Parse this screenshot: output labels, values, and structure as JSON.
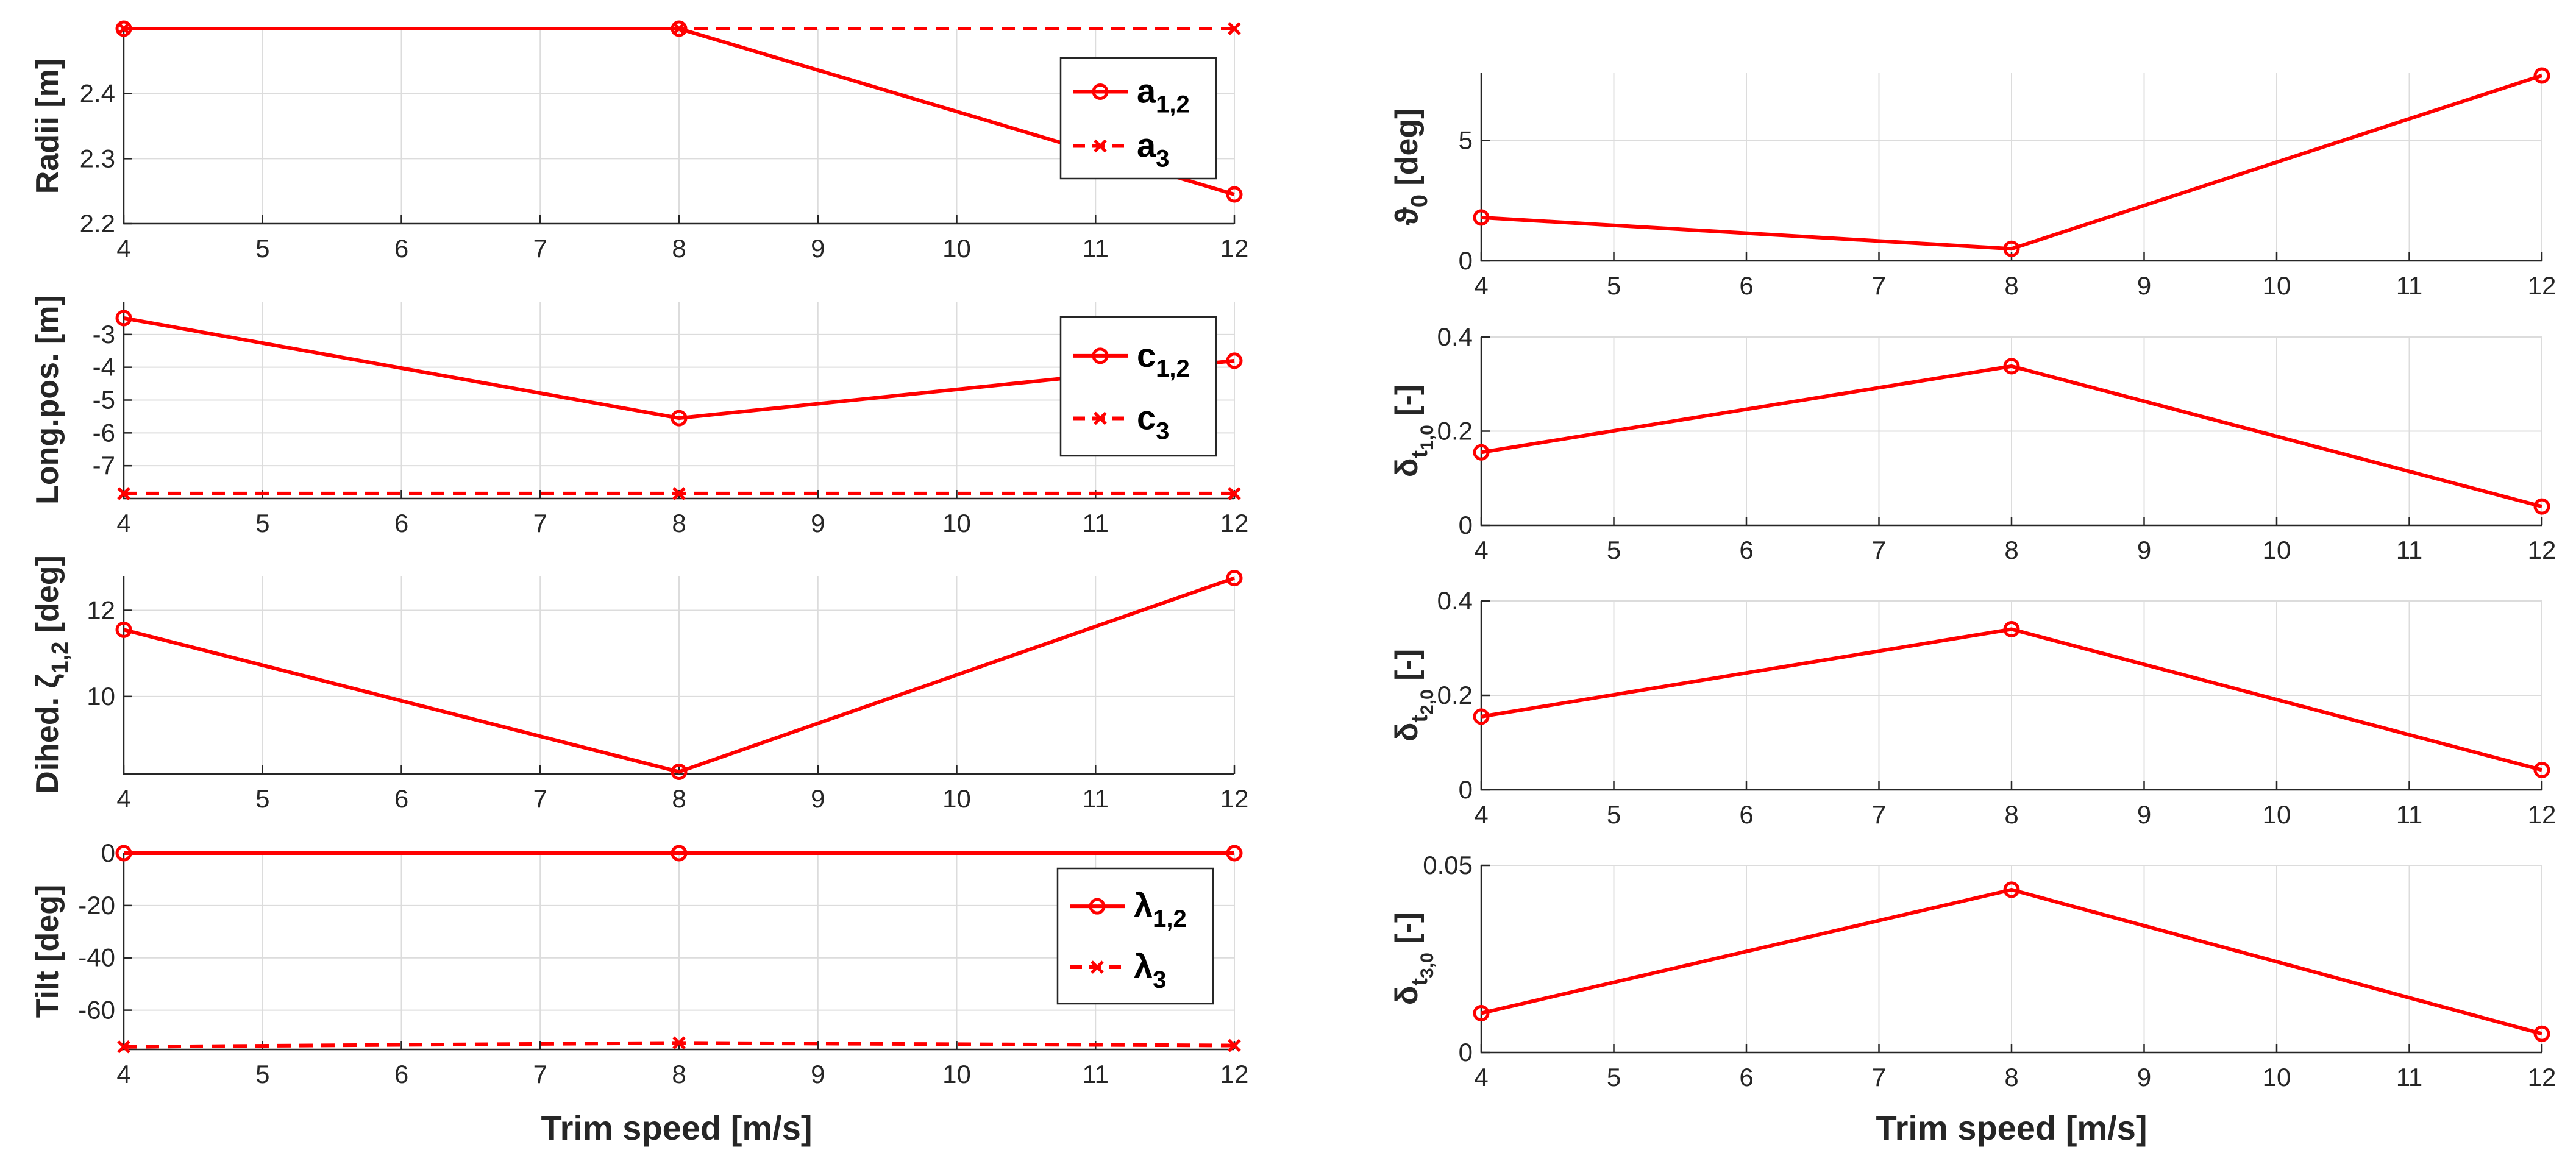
{
  "figure": {
    "xlabel": "Trim speed [m/s]"
  },
  "chart_data": [
    {
      "type": "line",
      "id": "radii",
      "ylabel": "Radii [m]",
      "ylim": [
        2.2,
        2.5
      ],
      "yticks": [
        2.2,
        2.3,
        2.4
      ],
      "xlim": [
        4,
        12
      ],
      "xticks": [
        4,
        5,
        6,
        7,
        8,
        9,
        10,
        11,
        12
      ],
      "series": [
        {
          "name": "a",
          "sub": "1,2",
          "x": [
            4,
            8,
            12
          ],
          "y": [
            2.5,
            2.5,
            2.245
          ],
          "dash": false,
          "marker": "o"
        },
        {
          "name": "a",
          "sub": "3",
          "x": [
            4,
            8,
            12
          ],
          "y": [
            2.5,
            2.5,
            2.5
          ],
          "dash": true,
          "marker": "x"
        }
      ],
      "legend": {
        "position": "top-right"
      }
    },
    {
      "type": "line",
      "id": "longpos",
      "ylabel": "Long.pos. [m]",
      "ylim": [
        -8,
        -2
      ],
      "yticks": [
        -7,
        -6,
        -5,
        -4,
        -3
      ],
      "xlim": [
        4,
        12
      ],
      "xticks": [
        4,
        5,
        6,
        7,
        8,
        9,
        10,
        11,
        12
      ],
      "series": [
        {
          "name": "c",
          "sub": "1,2",
          "x": [
            4,
            8,
            12
          ],
          "y": [
            -2.5,
            -5.55,
            -3.8
          ],
          "dash": false,
          "marker": "o"
        },
        {
          "name": "c",
          "sub": "3",
          "x": [
            4,
            8,
            12
          ],
          "y": [
            -7.85,
            -7.85,
            -7.85
          ],
          "dash": true,
          "marker": "x"
        }
      ],
      "legend": {
        "position": "top-right"
      }
    },
    {
      "type": "line",
      "id": "dihedral",
      "ylabel": "Dihed. ζ",
      "ylabel_sub": "1,2",
      "ylabel_unit": " [deg]",
      "ylim": [
        8.2,
        12.8
      ],
      "yticks": [
        10,
        12
      ],
      "xlim": [
        4,
        12
      ],
      "xticks": [
        4,
        5,
        6,
        7,
        8,
        9,
        10,
        11,
        12
      ],
      "series": [
        {
          "name": "zeta",
          "x": [
            4,
            8,
            12
          ],
          "y": [
            11.55,
            8.25,
            12.75
          ],
          "dash": false,
          "marker": "o"
        }
      ]
    },
    {
      "type": "line",
      "id": "tilt",
      "ylabel": "Tilt [deg]",
      "ylim": [
        -75,
        0
      ],
      "yticks": [
        -60,
        -40,
        -20,
        0
      ],
      "xlim": [
        4,
        12
      ],
      "xticks": [
        4,
        5,
        6,
        7,
        8,
        9,
        10,
        11,
        12
      ],
      "series": [
        {
          "name": "λ",
          "sub": "1,2",
          "x": [
            4,
            8,
            12
          ],
          "y": [
            0,
            0,
            0
          ],
          "dash": false,
          "marker": "o"
        },
        {
          "name": "λ",
          "sub": "3",
          "x": [
            4,
            8,
            12
          ],
          "y": [
            -74,
            -72.5,
            -73.5
          ],
          "dash": true,
          "marker": "x"
        }
      ],
      "legend": {
        "position": "top-right"
      }
    },
    {
      "type": "line",
      "id": "theta0",
      "ylabel": "ϑ",
      "ylabel_sub": "0",
      "ylabel_unit": " [deg]",
      "ylim": [
        0,
        7.8
      ],
      "yticks": [
        0,
        5
      ],
      "xlim": [
        4,
        12
      ],
      "xticks": [
        4,
        5,
        6,
        7,
        8,
        9,
        10,
        11,
        12
      ],
      "series": [
        {
          "name": "theta0",
          "x": [
            4,
            8,
            12
          ],
          "y": [
            1.8,
            0.5,
            7.7
          ],
          "dash": false,
          "marker": "o"
        }
      ]
    },
    {
      "type": "line",
      "id": "dt1",
      "ylabel": "δ",
      "ylabel_sub": "t",
      "ylabel_subsub": "1,0",
      "ylabel_unit": "  [-]",
      "ylim": [
        0,
        0.4
      ],
      "yticks": [
        0,
        0.2,
        0.4
      ],
      "xlim": [
        4,
        12
      ],
      "xticks": [
        4,
        5,
        6,
        7,
        8,
        9,
        10,
        11,
        12
      ],
      "series": [
        {
          "name": "dt10",
          "x": [
            4,
            8,
            12
          ],
          "y": [
            0.155,
            0.338,
            0.04
          ],
          "dash": false,
          "marker": "o"
        }
      ]
    },
    {
      "type": "line",
      "id": "dt2",
      "ylabel": "δ",
      "ylabel_sub": "t",
      "ylabel_subsub": "2,0",
      "ylabel_unit": "  [-]",
      "ylim": [
        0,
        0.4
      ],
      "yticks": [
        0,
        0.2,
        0.4
      ],
      "xlim": [
        4,
        12
      ],
      "xticks": [
        4,
        5,
        6,
        7,
        8,
        9,
        10,
        11,
        12
      ],
      "series": [
        {
          "name": "dt20",
          "x": [
            4,
            8,
            12
          ],
          "y": [
            0.155,
            0.34,
            0.042
          ],
          "dash": false,
          "marker": "o"
        }
      ]
    },
    {
      "type": "line",
      "id": "dt3",
      "ylabel": "δ",
      "ylabel_sub": "t",
      "ylabel_subsub": "3,0",
      "ylabel_unit": "  [-]",
      "ylim": [
        0,
        0.05
      ],
      "yticks": [
        0,
        0.05
      ],
      "xlim": [
        4,
        12
      ],
      "xticks": [
        4,
        5,
        6,
        7,
        8,
        9,
        10,
        11,
        12
      ],
      "series": [
        {
          "name": "dt30",
          "x": [
            4,
            8,
            12
          ],
          "y": [
            0.0105,
            0.0435,
            0.005
          ],
          "dash": false,
          "marker": "o"
        }
      ]
    }
  ],
  "colors": {
    "line": "#ff0000",
    "axis": "#262626",
    "grid": "#dcdcdc"
  }
}
